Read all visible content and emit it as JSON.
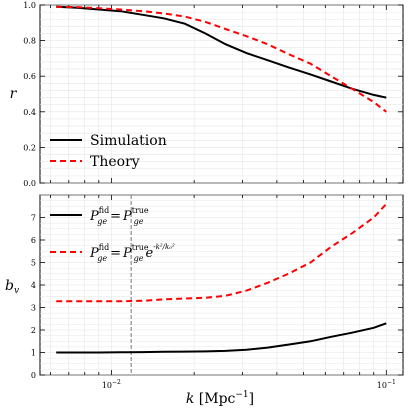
{
  "chart_data": [
    {
      "type": "line",
      "ylabel": "r",
      "ylim": [
        0.0,
        1.0
      ],
      "yticks": [
        "0.0",
        "0.2",
        "0.4",
        "0.6",
        "0.8",
        "1.0"
      ],
      "x_scale": "log",
      "xlim": [
        0.0055,
        0.115
      ],
      "grid": true,
      "legend_placement": "bottom-left",
      "series": [
        {
          "name": "Simulation",
          "color": "#000000",
          "style": "solid",
          "x": [
            0.0063,
            0.0075,
            0.009,
            0.0108,
            0.013,
            0.0155,
            0.0185,
            0.022,
            0.026,
            0.031,
            0.037,
            0.044,
            0.053,
            0.063,
            0.075,
            0.09,
            0.1
          ],
          "y": [
            0.99,
            0.985,
            0.975,
            0.965,
            0.945,
            0.925,
            0.895,
            0.84,
            0.78,
            0.73,
            0.69,
            0.65,
            0.61,
            0.57,
            0.53,
            0.495,
            0.48
          ]
        },
        {
          "name": "Theory",
          "color": "#ff0000",
          "style": "dashed",
          "x": [
            0.0063,
            0.0075,
            0.009,
            0.0108,
            0.013,
            0.0155,
            0.0185,
            0.022,
            0.026,
            0.031,
            0.037,
            0.044,
            0.053,
            0.063,
            0.075,
            0.09,
            0.1
          ],
          "y": [
            0.99,
            0.988,
            0.982,
            0.975,
            0.965,
            0.953,
            0.935,
            0.905,
            0.865,
            0.825,
            0.78,
            0.725,
            0.67,
            0.6,
            0.53,
            0.455,
            0.4
          ]
        }
      ],
      "legend": [
        "Simulation",
        "Theory"
      ]
    },
    {
      "type": "line",
      "ylabel": "b_v",
      "ylim": [
        0,
        8.0
      ],
      "yticks": [
        "0",
        "1",
        "2",
        "3",
        "4",
        "5",
        "6",
        "7"
      ],
      "x_scale": "log",
      "xlim": [
        0.0055,
        0.115
      ],
      "xlabel": "k [Mpc^{-1}]",
      "xticks": [
        "10^{-2}",
        "10^{-1}"
      ],
      "grid": true,
      "legend_placement": "top-left",
      "vline_x": 0.0118,
      "series": [
        {
          "color": "#000000",
          "style": "solid",
          "x": [
            0.0063,
            0.0075,
            0.009,
            0.0108,
            0.013,
            0.0155,
            0.0185,
            0.022,
            0.026,
            0.031,
            0.037,
            0.044,
            0.053,
            0.063,
            0.075,
            0.09,
            0.1
          ],
          "y": [
            1.0,
            1.0,
            1.0,
            1.01,
            1.02,
            1.03,
            1.04,
            1.05,
            1.07,
            1.12,
            1.22,
            1.35,
            1.5,
            1.7,
            1.88,
            2.1,
            2.3
          ]
        },
        {
          "color": "#ff0000",
          "style": "dashed",
          "x": [
            0.0063,
            0.0075,
            0.009,
            0.0108,
            0.013,
            0.0155,
            0.0185,
            0.022,
            0.026,
            0.031,
            0.037,
            0.044,
            0.053,
            0.063,
            0.075,
            0.09,
            0.1
          ],
          "y": [
            3.28,
            3.28,
            3.28,
            3.28,
            3.3,
            3.36,
            3.4,
            3.43,
            3.52,
            3.75,
            4.1,
            4.5,
            5.0,
            5.7,
            6.3,
            7.0,
            7.6
          ]
        }
      ],
      "legend": [
        {
          "lhs": "P",
          "lhs_sup": "fid",
          "lhs_sub": "ge",
          "eq": "=",
          "rhs": "P",
          "rhs_sup": "true",
          "rhs_sub": "ge",
          "extra": ""
        },
        {
          "lhs": "P",
          "lhs_sup": "fid",
          "lhs_sub": "ge",
          "eq": "=",
          "rhs": "P",
          "rhs_sup": "true",
          "rhs_sub": "ge",
          "extra": "e",
          "extra_sup": "-k²/k₀²"
        }
      ]
    }
  ]
}
